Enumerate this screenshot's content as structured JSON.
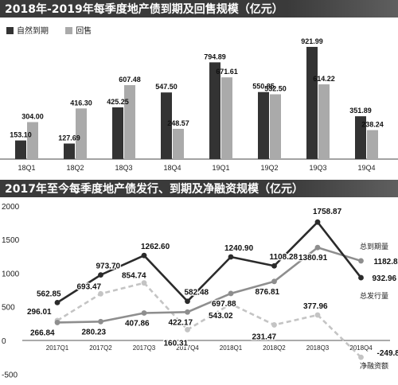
{
  "chart_data": [
    {
      "type": "bar",
      "title": "2018年-2019年每季度地产债到期及回售规模（亿元）",
      "categories": [
        "18Q1",
        "18Q2",
        "18Q3",
        "18Q4",
        "19Q1",
        "19Q2",
        "19Q3",
        "19Q4"
      ],
      "series": [
        {
          "name": "自然到期",
          "color": "#333333",
          "values": [
            153.1,
            127.69,
            425.25,
            547.5,
            794.89,
            550.85,
            921.99,
            351.89
          ],
          "labels": [
            "153.10",
            "127.69",
            "425.25",
            "547.50",
            "794.89",
            "550.85",
            "921.99",
            "351.89"
          ]
        },
        {
          "name": "回售",
          "color": "#aaaaaa",
          "values": [
            304.0,
            416.3,
            607.48,
            248.57,
            671.61,
            532.5,
            614.22,
            238.24
          ],
          "labels": [
            "304.00",
            "416.30",
            "607.48",
            "248.57",
            "671.61",
            "532.50",
            "614.22",
            "238.24"
          ]
        }
      ],
      "ylim": [
        0,
        1000
      ],
      "legend": "top-left"
    },
    {
      "type": "line",
      "title": "2017年至今每季度地产债发行、到期及净融资规模（亿元）",
      "categories": [
        "2017Q1",
        "2017Q2",
        "2017Q3",
        "2017Q4",
        "2018Q1",
        "2018Q2",
        "2018Q3",
        "2018Q4"
      ],
      "yticks": [
        "2000",
        "1500",
        "1000",
        "500",
        "0",
        "-500"
      ],
      "ylim": [
        -500,
        2000
      ],
      "series": [
        {
          "name": "总发行量",
          "color": "#2b2b2b",
          "dash": false,
          "values": [
            562.85,
            973.7,
            1262.6,
            582.48,
            1240.9,
            1108.28,
            1758.87,
            932.96
          ],
          "labels": [
            "562.85",
            "973.70",
            "1262.60",
            "582.48",
            "1240.90",
            "1108.28",
            "1758.87",
            "932.96"
          ]
        },
        {
          "name": "总到期量",
          "color": "#8e8e8e",
          "dash": false,
          "values": [
            266.84,
            280.23,
            407.86,
            422.17,
            697.88,
            876.81,
            1380.91,
            1182.82
          ],
          "labels": [
            "266.84",
            "280.23",
            "407.86",
            "422.17",
            "697.88",
            "876.81",
            "1380.91",
            "1182.82"
          ]
        },
        {
          "name": "净融资额",
          "color": "#c4c4c4",
          "dash": true,
          "values": [
            296.01,
            693.47,
            854.74,
            160.31,
            543.02,
            231.47,
            377.96,
            -249.86
          ],
          "labels": [
            "296.01",
            "693.47",
            "854.74",
            "160.31",
            "543.02",
            "231.47",
            "377.96",
            "-249.86"
          ]
        }
      ]
    }
  ]
}
